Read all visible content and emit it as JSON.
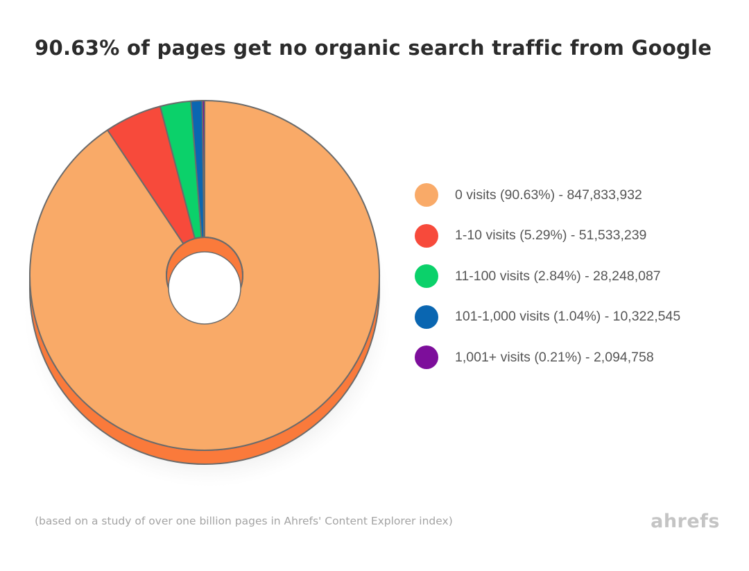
{
  "chart_data": {
    "type": "pie",
    "variant": "donut",
    "title": "90.63% of pages get no organic search traffic from Google",
    "legend_position": "right",
    "series": [
      {
        "name": "",
        "slices": [
          {
            "label": "0 visits (90.63%) - 847,833,932",
            "value": 90.63,
            "count": 847833932,
            "color": "#f9aa68"
          },
          {
            "label": "1-10 visits (5.29%) - 51,533,239",
            "value": 5.29,
            "count": 51533239,
            "color": "#f74a3b"
          },
          {
            "label": "11-100 visits (2.84%) - 28,248,087",
            "value": 2.84,
            "count": 28248087,
            "color": "#0bd16a"
          },
          {
            "label": "101-1,000 visits (1.04%) - 10,322,545",
            "value": 1.04,
            "count": 10322545,
            "color": "#0a66b1"
          },
          {
            "label": "1,001+ visits (0.21%) - 2,094,758",
            "value": 0.21,
            "count": 2094758,
            "color": "#7d0e9b"
          }
        ]
      }
    ],
    "side_color": "#fa7a3b",
    "outline_color": "#6b6b6b"
  },
  "footnote": "(based on a study of over one billion pages in Ahrefs' Content Explorer index)",
  "brand": "ahrefs"
}
